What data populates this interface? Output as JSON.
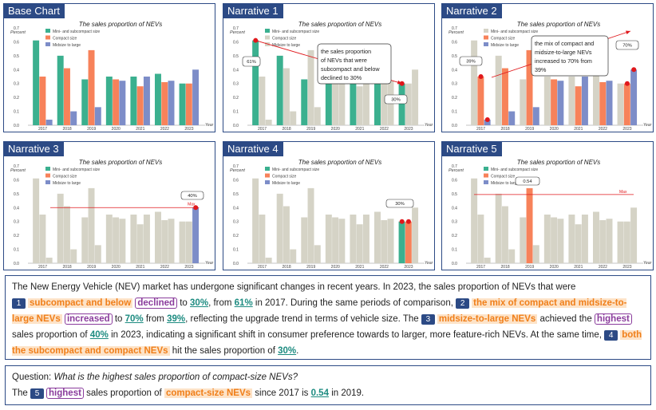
{
  "panels": [
    {
      "title": "Base Chart"
    },
    {
      "title": "Narrative 1"
    },
    {
      "title": "Narrative 2"
    },
    {
      "title": "Narrative 3"
    },
    {
      "title": "Narrative 4"
    },
    {
      "title": "Narrative 5"
    }
  ],
  "chart_data": {
    "type": "bar",
    "title": "The sales proportion of NEVs",
    "ylabel": "Percent",
    "xlabel": "Year",
    "ylim": [
      0,
      0.7
    ],
    "yticks": [
      "0.0",
      "0.1",
      "0.2",
      "0.3",
      "0.4",
      "0.5",
      "0.6",
      "0.7"
    ],
    "categories": [
      "2017",
      "2018",
      "2019",
      "2020",
      "2021",
      "2022",
      "2023"
    ],
    "series": [
      {
        "name": "Mini- and subcompact size",
        "color": "#3bb08f",
        "values": [
          0.61,
          0.5,
          0.33,
          0.35,
          0.35,
          0.37,
          0.3
        ]
      },
      {
        "name": "Compact size",
        "color": "#f7825a",
        "values": [
          0.35,
          0.41,
          0.54,
          0.33,
          0.28,
          0.31,
          0.3
        ]
      },
      {
        "name": "Midsize to large",
        "color": "#7d8dc8",
        "values": [
          0.04,
          0.1,
          0.13,
          0.32,
          0.35,
          0.32,
          0.4
        ]
      }
    ],
    "gray_color": "#d5d3c6",
    "annotations": {
      "n1_box": "the sales proportion of NEVs that were subcompact and below declined to 30%",
      "n1_start": "61%",
      "n1_end": "30%",
      "n2_box": "the mix of compact and midsize-to-large NEVs increased to 70% from 39%",
      "n2_start": "39%",
      "n2_end": "70%",
      "n3_value": "40%",
      "max_label": "Max",
      "n4_value": "30%",
      "n5_value": "0.54"
    }
  },
  "narrative": {
    "s0": "The New Energy Vehicle (NEV) market has undergone significant changes in recent years. In 2023, the sales proportion of NEVs that were",
    "b1": "1",
    "p1a": "subcompact and below",
    "p1b": "declined",
    "p1c": "to",
    "p1d": "30%",
    "p1e": ", from",
    "p1f": "61%",
    "p1g": "in 2017. During the same periods of comparison,",
    "b2": "2",
    "p2a": "the mix of compact and midsize-to-large NEVs",
    "p2b": "increased",
    "p2c": "to",
    "p2d": "70%",
    "p2e": "from",
    "p2f": "39%",
    "p2g": ", reflecting the upgrade trend in terms of vehicle size. The",
    "b3": "3",
    "p3a": "midsize-to-large NEVs",
    "p3b": "achieved the",
    "p3c": "highest",
    "p3d": "sales proportion of",
    "p3e": "40%",
    "p3f": "in 2023, indicating a significant shift in consumer preference towards to larger, more feature-rich NEVs. At the same time,",
    "b4": "4",
    "p4a": "both the subcompact and compact NEVs",
    "p4b": "hit the sales proportion of",
    "p4c": "30%",
    "p4d": "."
  },
  "question": {
    "label": "Question:",
    "text": "What is the highest sales proportion of compact-size NEVs?",
    "a0": "The",
    "b5": "5",
    "a1": "highest",
    "a2": "sales proportion of",
    "a3": "compact-size NEVs",
    "a4": "since 2017 is",
    "a5": "0.54",
    "a6": "in 2019."
  }
}
